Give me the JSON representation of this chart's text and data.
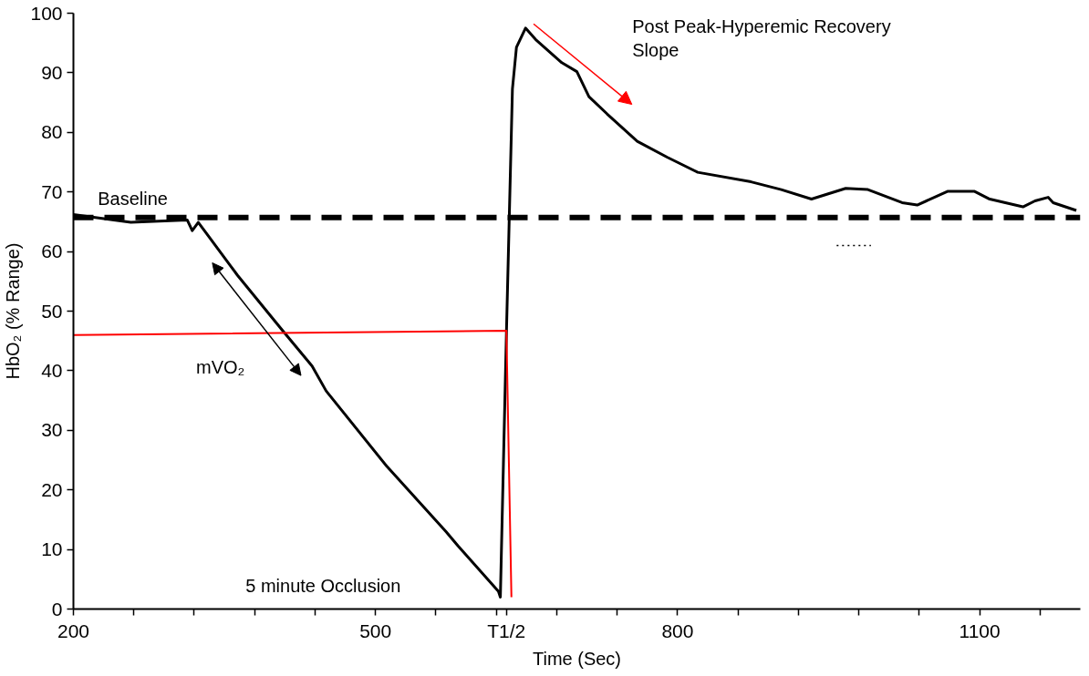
{
  "chart_data": {
    "type": "line",
    "xlabel": "Time (Sec)",
    "ylabel": "HbO₂ (% Range)",
    "xlim": [
      200,
      1200
    ],
    "ylim": [
      0,
      100
    ],
    "xticks": [
      200,
      {
        "value": 260,
        "label": null
      },
      {
        "value": 320,
        "label": null
      },
      {
        "value": 380,
        "label": null
      },
      {
        "value": 440,
        "label": null
      },
      500,
      {
        "value": 560,
        "label": null
      },
      {
        "value": 620,
        "label": null
      },
      {
        "value": 630,
        "label": "T1/2"
      },
      {
        "value": 680,
        "label": null
      },
      {
        "value": 740,
        "label": null
      },
      800,
      {
        "value": 860,
        "label": null
      },
      {
        "value": 920,
        "label": null
      },
      {
        "value": 980,
        "label": null
      },
      {
        "value": 1040,
        "label": null
      },
      1100,
      {
        "value": 1160,
        "label": null
      }
    ],
    "yticks": [
      0,
      10,
      20,
      30,
      40,
      50,
      60,
      70,
      80,
      90,
      100
    ],
    "grid": false,
    "marker": "none",
    "line_style": "solid",
    "series": [
      {
        "color": "#000000",
        "x": [
          200,
          257,
          313,
          318,
          324,
          363,
          406,
          437,
          451,
          511,
          570,
          582,
          622,
          624,
          630,
          636,
          640,
          649,
          659,
          685,
          700,
          712,
          730,
          760,
          790,
          820,
          873,
          903,
          933,
          967,
          989,
          1023,
          1038,
          1068,
          1095,
          1110,
          1143,
          1155,
          1168,
          1173,
          1196
        ],
        "values": [
          66.2,
          64.9,
          65.3,
          63.5,
          64.9,
          56.0,
          47.1,
          40.8,
          36.6,
          24.0,
          13.0,
          10.6,
          3.0,
          2.0,
          46.1,
          87.3,
          94.3,
          97.5,
          95.6,
          91.7,
          90.2,
          86.0,
          83.1,
          78.5,
          75.8,
          73.3,
          71.7,
          70.4,
          68.8,
          70.6,
          70.4,
          68.2,
          67.8,
          70.1,
          70.1,
          68.8,
          67.5,
          68.5,
          69.1,
          68.2,
          66.9
        ]
      },
      {
        "color": "#ff0000",
        "x": [
          200,
          630,
          635
        ],
        "values": [
          46.0,
          46.7,
          2.0
        ]
      },
      {
        "color": "#000000",
        "x": [
          958,
          992
        ],
        "values": [
          61,
          61
        ],
        "line_style": "dotted"
      }
    ],
    "ref_lines": [
      {
        "axis": "y",
        "value": 65.7,
        "label": null,
        "color": "#000000",
        "line_style": "dashed"
      }
    ],
    "annotations": [
      "Baseline",
      "mVO₂",
      "5 minute Occlusion",
      "Post Peak-Hyperemic Recovery\nSlope"
    ]
  }
}
